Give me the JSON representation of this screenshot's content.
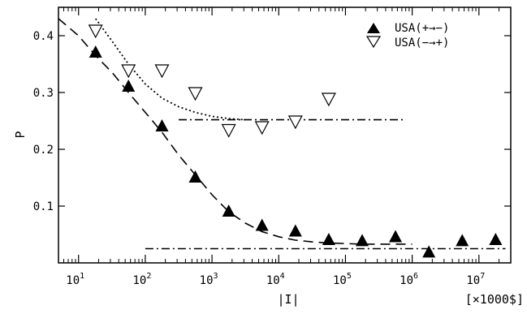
{
  "chart_data": {
    "type": "scatter",
    "xscale": "log",
    "xlim": [
      5,
      30000000
    ],
    "ylim": [
      0,
      0.45
    ],
    "xlabel": "|I|",
    "xunit": "[×1000$]",
    "ylabel": "P",
    "grid": false,
    "legend": "top-right",
    "yticks": [
      {
        "value": 0.1,
        "label": "0.1"
      },
      {
        "value": 0.2,
        "label": "0.2"
      },
      {
        "value": 0.3,
        "label": "0.3"
      },
      {
        "value": 0.4,
        "label": "0.4"
      }
    ],
    "xticks": [
      {
        "value": 10,
        "base": "10",
        "exp": "1"
      },
      {
        "value": 100,
        "base": "10",
        "exp": "2"
      },
      {
        "value": 1000,
        "base": "10",
        "exp": "3"
      },
      {
        "value": 10000,
        "base": "10",
        "exp": "4"
      },
      {
        "value": 100000,
        "base": "10",
        "exp": "5"
      },
      {
        "value": 1000000,
        "base": "10",
        "exp": "6"
      },
      {
        "value": 10000000,
        "base": "10",
        "exp": "7"
      }
    ],
    "series": [
      {
        "name": "USA(+→−)",
        "marker": "filled-triangle-up",
        "color": "#000000",
        "x": [
          18,
          56,
          178,
          562,
          1780,
          5620,
          17800,
          56200,
          178000,
          562000,
          1780000,
          5620000,
          17800000
        ],
        "y": [
          0.37,
          0.31,
          0.24,
          0.15,
          0.09,
          0.065,
          0.055,
          0.04,
          0.038,
          0.045,
          0.018,
          0.038,
          0.04
        ]
      },
      {
        "name": "USA(−→+)",
        "marker": "open-triangle-down",
        "color": "#000000",
        "x": [
          18,
          56,
          178,
          562,
          1780,
          5620,
          17800,
          56200
        ],
        "y": [
          0.41,
          0.34,
          0.34,
          0.3,
          0.235,
          0.24,
          0.25,
          0.29
        ]
      }
    ],
    "curves": [
      {
        "style": "dashed",
        "x": [
          5,
          10,
          18,
          32,
          56,
          100,
          178,
          316,
          562,
          1000,
          1780,
          3160,
          5620,
          10000,
          17800,
          31600,
          56200,
          100000,
          178000,
          316000,
          562000,
          1000000
        ],
        "y": [
          0.43,
          0.4,
          0.365,
          0.335,
          0.3,
          0.265,
          0.23,
          0.19,
          0.155,
          0.12,
          0.09,
          0.07,
          0.055,
          0.046,
          0.04,
          0.037,
          0.035,
          0.034,
          0.033,
          0.033,
          0.033,
          0.033
        ]
      },
      {
        "style": "dotted",
        "x": [
          18,
          32,
          56,
          100,
          178,
          316,
          562,
          1000,
          1780,
          3160
        ],
        "y": [
          0.43,
          0.39,
          0.35,
          0.315,
          0.29,
          0.275,
          0.265,
          0.258,
          0.254,
          0.252
        ]
      },
      {
        "style": "dash-dot",
        "x": [
          316,
          800000
        ],
        "y": [
          0.252,
          0.252
        ]
      },
      {
        "style": "dash-dot",
        "x": [
          100,
          25000000
        ],
        "y": [
          0.025,
          0.025
        ]
      }
    ]
  }
}
